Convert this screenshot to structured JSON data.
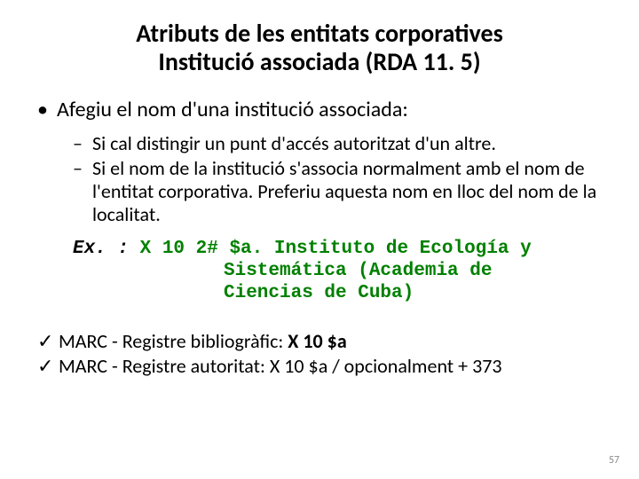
{
  "title_line1": "Atributs de les entitats corporatives",
  "title_line2": "Institució associada (RDA 11. 5)",
  "level1_bullet": "•",
  "level1_text": "Afegiu el nom d'una institució associada:",
  "level2_bullet": "–",
  "level2_items": [
    "Si cal distingir un punt d'accés autoritzat d'un altre.",
    "Si el nom de la institució s'associa normalment amb el nom de l'entitat corporativa. Preferiu aquesta nom en lloc del nom de la localitat."
  ],
  "example_label": "Ex. : ",
  "example_code_line1": "X 10 2# $a. Instituto de Ecología y",
  "example_code_line2": "Sistemática (Academia de",
  "example_code_line3": "Ciencias de Cuba)",
  "check_mark": "✓",
  "checks": [
    {
      "prefix": "MARC - Registre bibliogràfic: ",
      "bold": "X 10 $a",
      "suffix": ""
    },
    {
      "prefix": "MARC - Registre autoritat: X 10 $a / opcionalment + 373",
      "bold": "",
      "suffix": ""
    }
  ],
  "page_number": "57",
  "colors": {
    "text": "#000000",
    "code": "#008000",
    "pagenum": "#8a8a8a",
    "background": "#ffffff"
  }
}
